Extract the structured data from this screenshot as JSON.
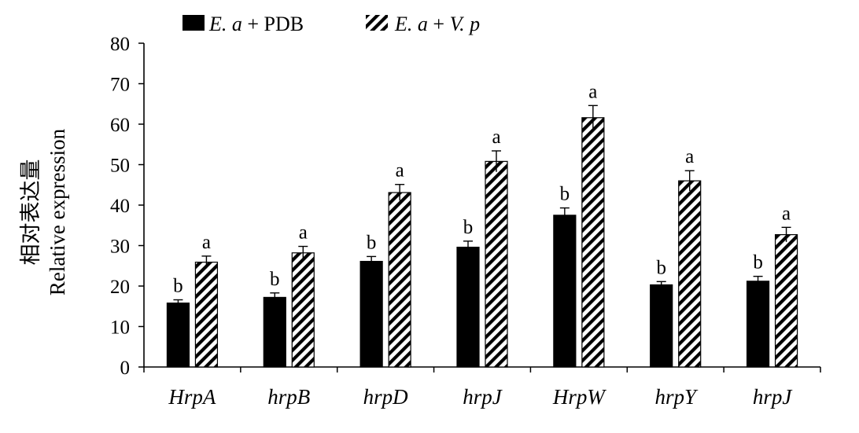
{
  "chart_data": {
    "type": "bar",
    "title": "",
    "xlabel": "",
    "ylabel": "Relative expression",
    "ylabel_cn": "相对表达量",
    "ylim": [
      0,
      80
    ],
    "yticks": [
      0,
      10,
      20,
      30,
      40,
      50,
      60,
      70,
      80
    ],
    "grid": false,
    "legend_position": "top-left",
    "categories": [
      "HrpA",
      "hrpB",
      "hrpD",
      "hrpJ",
      "HrpW",
      "hrpY",
      "hrpJ"
    ],
    "series": [
      {
        "name": "E. a + PDB",
        "name_parts": [
          {
            "text": "E. a",
            "italic": true
          },
          {
            "text": " + PDB",
            "italic": false
          }
        ],
        "style": "solid",
        "color": "#000000",
        "values": [
          15.8,
          17.2,
          26.1,
          29.6,
          37.5,
          20.3,
          21.2
        ],
        "errors": [
          0.8,
          1.1,
          1.2,
          1.5,
          1.8,
          0.8,
          1.2
        ],
        "significance": [
          "b",
          "b",
          "b",
          "b",
          "b",
          "b",
          "b"
        ]
      },
      {
        "name": "E. a + V. p",
        "name_parts": [
          {
            "text": "E. a",
            "italic": true
          },
          {
            "text": " + ",
            "italic": false
          },
          {
            "text": "V. p",
            "italic": true
          }
        ],
        "style": "hatched",
        "color": "#000000",
        "values": [
          25.9,
          28.2,
          43.1,
          50.8,
          61.6,
          46.0,
          32.7
        ],
        "errors": [
          1.5,
          1.6,
          2.0,
          2.6,
          3.0,
          2.5,
          1.8
        ],
        "significance": [
          "a",
          "a",
          "a",
          "a",
          "a",
          "a",
          "a"
        ]
      }
    ]
  }
}
